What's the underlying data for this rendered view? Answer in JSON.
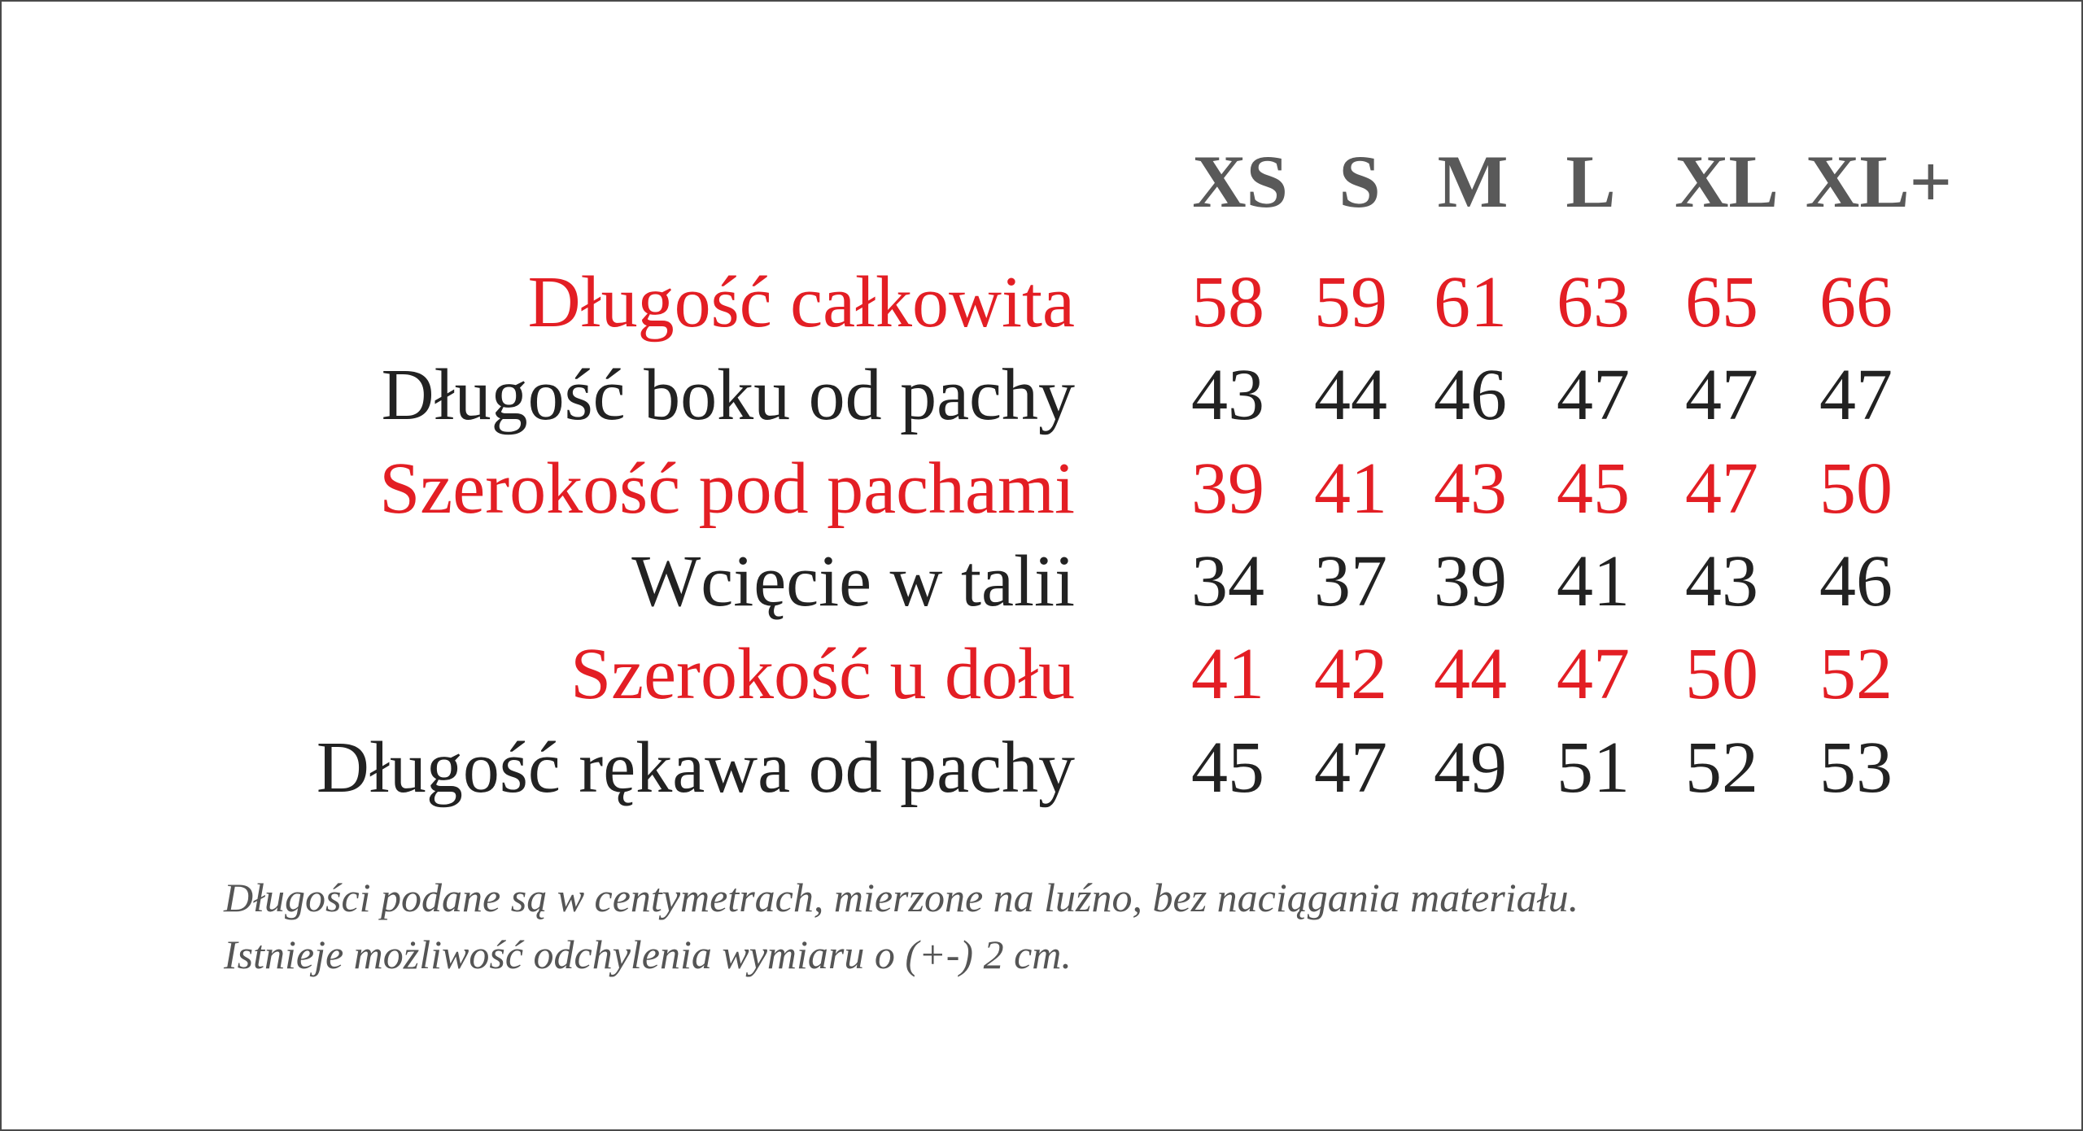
{
  "sizes": [
    "XS",
    "S",
    "M",
    "L",
    "XL",
    "XL+"
  ],
  "rows": [
    {
      "label": "Długość całkowita",
      "values": [
        "58",
        "59",
        "61",
        "63",
        "65",
        "66"
      ],
      "color": "#e31e24"
    },
    {
      "label": "Długość boku od pachy",
      "values": [
        "43",
        "44",
        "46",
        "47",
        "47",
        "47"
      ],
      "color": "#222222"
    },
    {
      "label": "Szerokość pod pachami",
      "values": [
        "39",
        "41",
        "43",
        "45",
        "47",
        "50"
      ],
      "color": "#e31e24"
    },
    {
      "label": "Wcięcie w talii",
      "values": [
        "34",
        "37",
        "39",
        "41",
        "43",
        "46"
      ],
      "color": "#222222"
    },
    {
      "label": "Szerokość u dołu",
      "values": [
        "41",
        "42",
        "44",
        "47",
        "50",
        "52"
      ],
      "color": "#e31e24"
    },
    {
      "label": "Długość rękawa od pachy",
      "values": [
        "45",
        "47",
        "49",
        "51",
        "52",
        "53"
      ],
      "color": "#222222"
    }
  ],
  "notes": [
    "Długości podane są w centymetrach, mierzone na luźno, bez naciągania materiału.",
    "Istnieje możliwość odchylenia wymiaru o (+-) 2 cm."
  ]
}
